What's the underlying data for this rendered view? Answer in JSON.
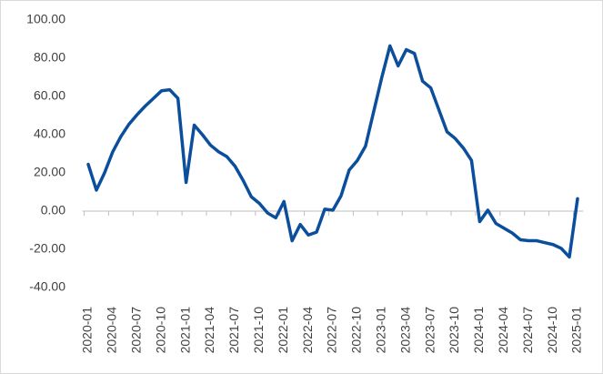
{
  "chart_data": {
    "type": "line",
    "categories": [
      "2020-01",
      null,
      null,
      "2020-04",
      null,
      null,
      "2020-07",
      null,
      null,
      "2020-10",
      null,
      null,
      "2021-01",
      null,
      null,
      "2021-04",
      null,
      null,
      "2021-07",
      null,
      null,
      "2021-10",
      null,
      null,
      "2022-01",
      null,
      null,
      "2022-04",
      null,
      null,
      "2022-07",
      null,
      null,
      "2022-10",
      null,
      null,
      "2023-01",
      null,
      null,
      "2023-04",
      null,
      null,
      "2023-07",
      null,
      null,
      "2023-10",
      null,
      null,
      "2024-01",
      null,
      null,
      "2024-04",
      null,
      null,
      "2024-07",
      null,
      null,
      "2024-10",
      null,
      null,
      "2025-01"
    ],
    "series": [
      {
        "color": "#0b4f9c",
        "values": [
          24.5,
          11,
          20,
          31,
          39,
          45.5,
          50.5,
          55,
          59,
          63,
          63.5,
          59,
          15,
          45,
          40,
          34.5,
          31,
          28.5,
          23.5,
          16,
          7.5,
          4,
          -1,
          -3.5,
          5,
          -15.5,
          -7,
          -12.5,
          -11,
          1,
          0.5,
          8,
          21.5,
          26.5,
          34,
          52,
          70,
          86.5,
          76,
          84.5,
          82.5,
          68,
          64.5,
          53,
          41.5,
          38,
          33,
          26.5,
          -5.5,
          0.5,
          -6.5,
          -9,
          -11.5,
          -15,
          -15.5,
          -15.5,
          -16.5,
          -17.5,
          -19.5,
          -24,
          6.5
        ]
      }
    ],
    "ylim": [
      -40,
      100
    ],
    "yticks": [
      {
        "value": -40,
        "label": "-40.00"
      },
      {
        "value": -20,
        "label": "-20.00"
      },
      {
        "value": 0,
        "label": "0.00"
      },
      {
        "value": 20,
        "label": "20.00"
      },
      {
        "value": 40,
        "label": "40.00"
      },
      {
        "value": 60,
        "label": "60.00"
      },
      {
        "value": 80,
        "label": "80.00"
      },
      {
        "value": 100,
        "label": "100.00"
      }
    ],
    "grid": false
  }
}
